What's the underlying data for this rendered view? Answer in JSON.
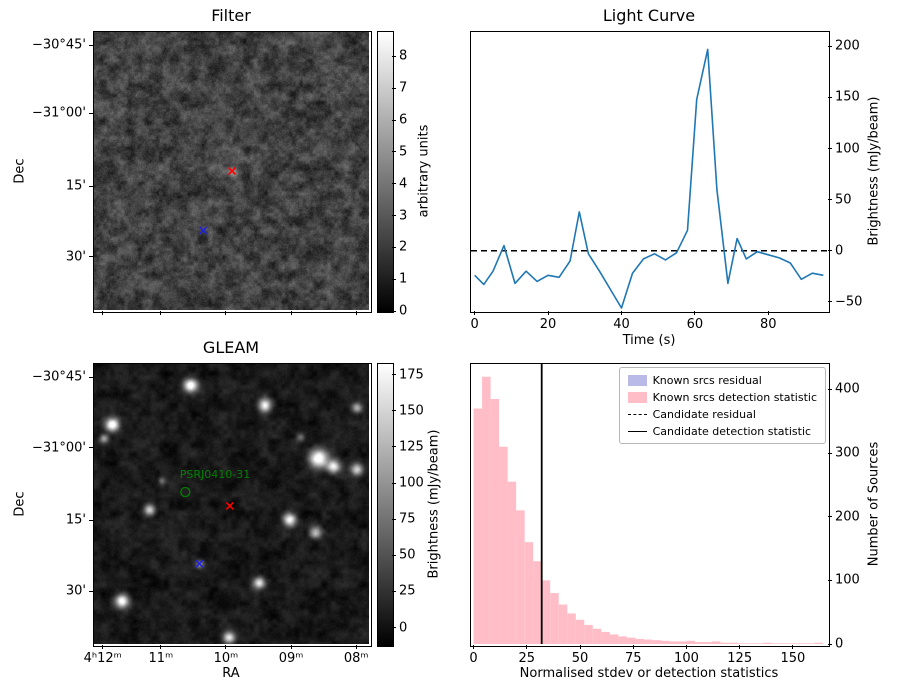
{
  "chart_data": [
    {
      "id": "filter",
      "type": "heatmap",
      "title": "Filter",
      "ylabel": "Dec",
      "yticks": [
        {
          "label": "−30°45'",
          "pos": 0.05
        },
        {
          "label": "−31°00'",
          "pos": 0.293
        },
        {
          "label": "15'",
          "pos": 0.554
        },
        {
          "label": "30'",
          "pos": 0.807
        }
      ],
      "xticks_pos": [
        0.035,
        0.245,
        0.48,
        0.715,
        0.95
      ],
      "colorbar": {
        "label": "arbitrary units",
        "vmin": 0,
        "vmax": 8.8,
        "ticks": [
          0,
          1,
          2,
          3,
          4,
          5,
          6,
          7,
          8
        ]
      },
      "markers": [
        {
          "shape": "x",
          "color": "#ff0000",
          "x": 0.502,
          "y": 0.5,
          "halo": true
        },
        {
          "shape": "x",
          "color": "#2222dd",
          "x": 0.397,
          "y": 0.714
        }
      ]
    },
    {
      "id": "light_curve",
      "type": "line",
      "title": "Light Curve",
      "xlabel": "Time (s)",
      "ylabel": "Brightness (mJy/beam)",
      "line_color": "#1f77b4",
      "xlim": [
        -1,
        96
      ],
      "ylim": [
        -58,
        214
      ],
      "xticks": [
        0,
        20,
        40,
        60,
        80
      ],
      "yticks": [
        -50,
        0,
        50,
        100,
        150,
        200
      ],
      "zero_line": 0,
      "x": [
        0,
        2.5,
        5,
        8,
        11,
        14,
        17,
        20,
        23,
        26,
        28.5,
        31,
        34,
        37,
        40,
        43,
        46,
        49,
        52,
        55,
        58,
        60.5,
        63.5,
        66,
        69,
        71.5,
        74,
        77,
        80,
        83,
        86,
        89,
        92,
        95
      ],
      "y": [
        -24,
        -33,
        -20,
        5,
        -32,
        -20,
        -30,
        -24,
        -26,
        -10,
        38,
        -3,
        -20,
        -38,
        -56,
        -22,
        -8,
        -3,
        -9,
        -2,
        20,
        148,
        197,
        60,
        -32,
        12,
        -8,
        -1,
        -4,
        -7,
        -12,
        -28,
        -22,
        -24
      ]
    },
    {
      "id": "gleam",
      "type": "heatmap",
      "title": "GLEAM",
      "xlabel": "RA",
      "ylabel": "Dec",
      "yticks": [
        {
          "label": "−30°45'",
          "pos": 0.05
        },
        {
          "label": "−31°00'",
          "pos": 0.3
        },
        {
          "label": "15'",
          "pos": 0.557
        },
        {
          "label": "30'",
          "pos": 0.81
        }
      ],
      "xticks": [
        {
          "label": "4ʰ12ᵐ",
          "pos": 0.035
        },
        {
          "label": "11ᵐ",
          "pos": 0.245
        },
        {
          "label": "10ᵐ",
          "pos": 0.48
        },
        {
          "label": "09ᵐ",
          "pos": 0.715
        },
        {
          "label": "08ᵐ",
          "pos": 0.95
        }
      ],
      "colorbar": {
        "label": "Brightness (mJy/beam)",
        "vmin": -12,
        "vmax": 183,
        "ticks": [
          0,
          25,
          50,
          75,
          100,
          125,
          150,
          175
        ]
      },
      "annotation": {
        "text": "PSRJ0410-31",
        "color": "#008000",
        "text_x": 0.44,
        "text_y": 0.408,
        "circle_x": 0.332,
        "circle_y": 0.457
      },
      "sources": [
        [
          0.35,
          0.075,
          4.5,
          255
        ],
        [
          0.065,
          0.215,
          4.5,
          255
        ],
        [
          0.62,
          0.145,
          4.5,
          235
        ],
        [
          0.955,
          0.155,
          3.5,
          150
        ],
        [
          0.815,
          0.335,
          6.5,
          255
        ],
        [
          0.87,
          0.365,
          4.5,
          210
        ],
        [
          0.955,
          0.375,
          4,
          190
        ],
        [
          0.75,
          0.26,
          3,
          90
        ],
        [
          0.2,
          0.52,
          4,
          190
        ],
        [
          0.71,
          0.555,
          4.5,
          235
        ],
        [
          0.805,
          0.6,
          4,
          160
        ],
        [
          0.6,
          0.78,
          4,
          200
        ],
        [
          0.1,
          0.845,
          4.5,
          235
        ],
        [
          0.49,
          0.975,
          4,
          210
        ],
        [
          0.035,
          0.265,
          3,
          130
        ],
        [
          0.245,
          0.415,
          2.5,
          80
        ]
      ],
      "markers": [
        {
          "shape": "x",
          "color": "#ff0000",
          "x": 0.494,
          "y": 0.507
        },
        {
          "shape": "x",
          "color": "#2222dd",
          "x": 0.383,
          "y": 0.713,
          "halo": true
        }
      ]
    },
    {
      "id": "detection_histogram",
      "type": "histogram",
      "title": "",
      "xlabel": "Normalised stdev or detection statistics",
      "ylabel": "Number of Sources",
      "fill_color": "#ffb6c1",
      "residual_color": "#b3b3e6",
      "xlim": [
        -1.2,
        166
      ],
      "ylim": [
        0,
        440
      ],
      "xticks": [
        0,
        25,
        50,
        75,
        100,
        125,
        150
      ],
      "yticks": [
        0,
        100,
        200,
        300,
        400
      ],
      "bin_start": 0,
      "bin_width": 4,
      "counts": [
        370,
        420,
        385,
        310,
        255,
        210,
        160,
        130,
        100,
        80,
        62,
        48,
        38,
        30,
        24,
        19,
        15,
        12,
        10,
        8,
        7,
        6,
        5,
        4,
        4,
        5,
        3,
        3,
        4,
        2,
        2,
        1,
        1,
        1,
        2,
        1,
        1,
        1,
        1,
        1,
        2
      ],
      "candidate_detection_statistic": 32,
      "legend": [
        {
          "label": "Known srcs residual",
          "swatch": "patch",
          "color": "#b3b3e6"
        },
        {
          "label": "Known srcs detection statistic",
          "swatch": "patch",
          "color": "#ffb6c1"
        },
        {
          "label": "Candidate residual",
          "swatch": "dashed-line",
          "color": "#000000"
        },
        {
          "label": "Candidate detection statistic",
          "swatch": "solid-line",
          "color": "#000000"
        }
      ]
    }
  ]
}
